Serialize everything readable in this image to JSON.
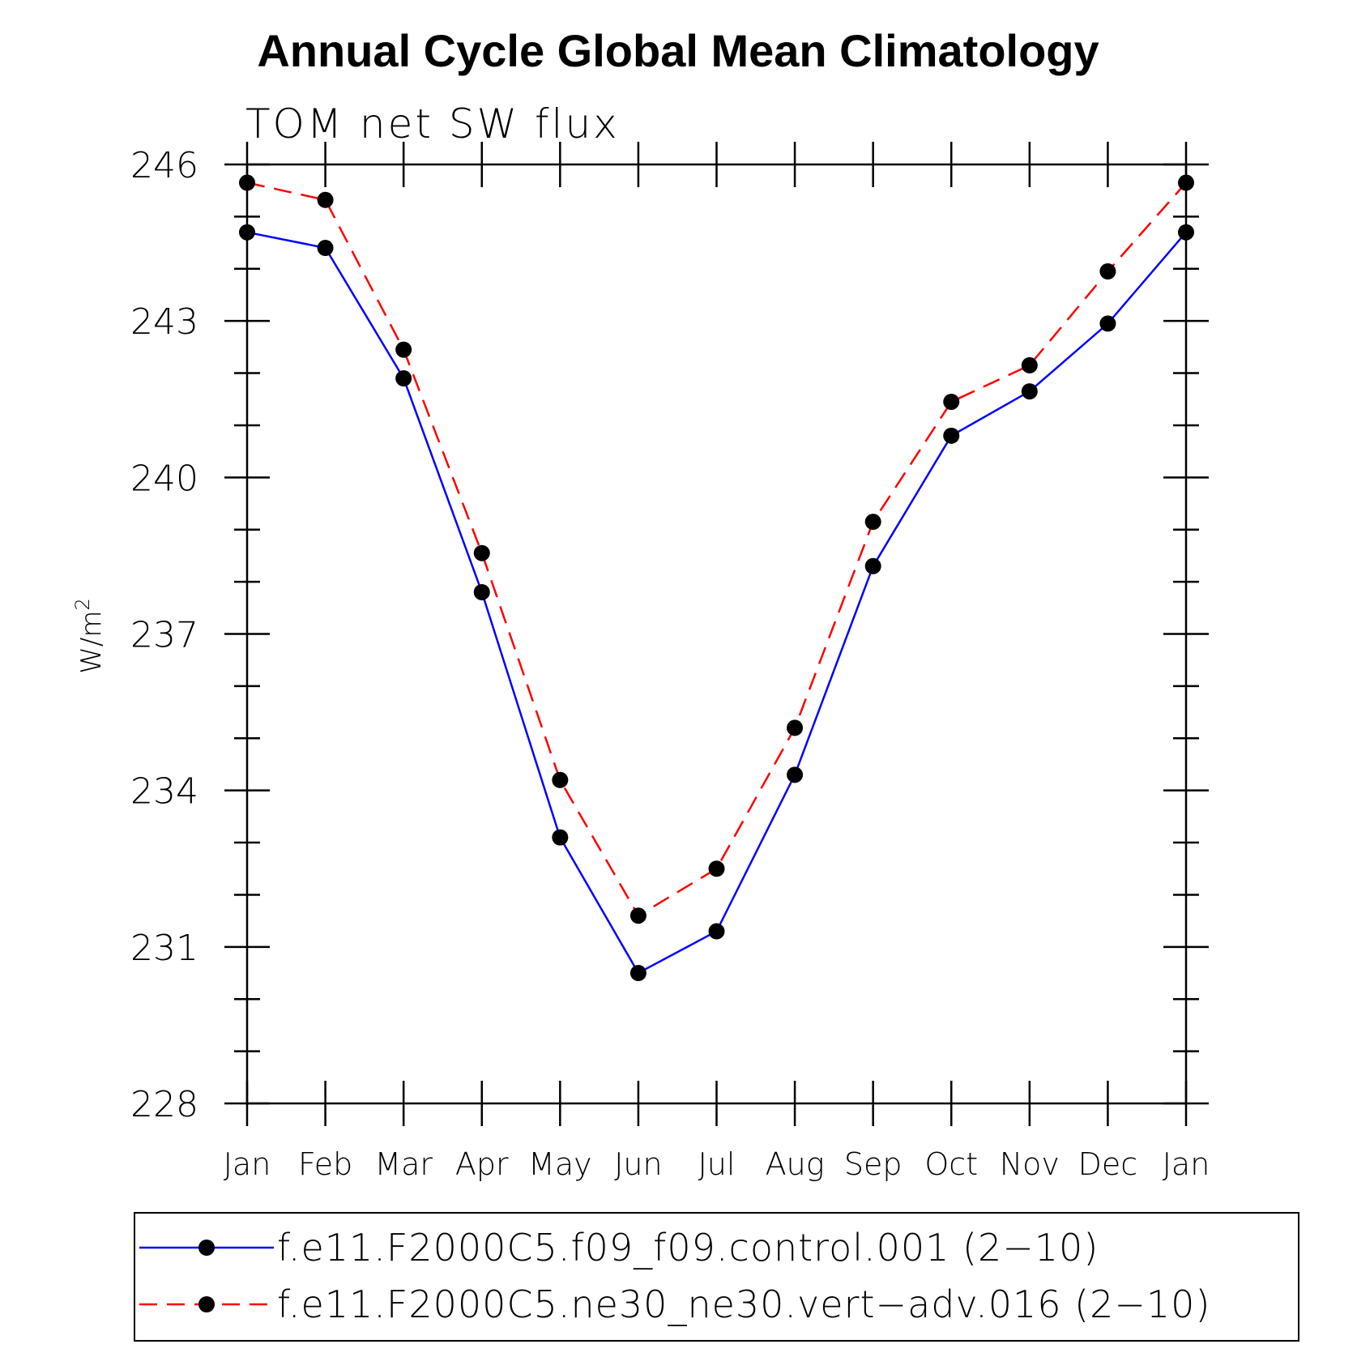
{
  "chart_data": {
    "type": "line",
    "title": "Annual Cycle Global Mean Climatology",
    "subtitle": "TOM net SW flux",
    "ylabel": "W/m",
    "ylabel_superscript": "2",
    "xlabel": "",
    "categories": [
      "Jan",
      "Feb",
      "Mar",
      "Apr",
      "May",
      "Jun",
      "Jul",
      "Aug",
      "Sep",
      "Oct",
      "Nov",
      "Dec",
      "Jan"
    ],
    "yticks": [
      "228",
      "231",
      "234",
      "237",
      "240",
      "243",
      "246"
    ],
    "ylim": [
      228,
      246
    ],
    "grid": false,
    "legend_position": "bottom",
    "series": [
      {
        "name": "f.e11.F2000C5.f09_f09.control.001 (2−10)",
        "color": "#0000ff",
        "line_style": "solid",
        "marker": "filled-circle",
        "values": [
          244.7,
          244.4,
          241.9,
          237.8,
          233.1,
          230.5,
          231.3,
          234.3,
          238.3,
          240.8,
          241.65,
          242.95,
          244.7
        ]
      },
      {
        "name": "f.e11.F2000C5.ne30_ne30.vert−adv.016 (2−10)",
        "color": "#ff0000",
        "line_style": "dashed",
        "marker": "filled-circle",
        "values": [
          245.65,
          245.32,
          242.45,
          238.55,
          234.2,
          231.6,
          232.5,
          235.2,
          239.15,
          241.45,
          242.15,
          243.95,
          245.65
        ]
      }
    ]
  }
}
